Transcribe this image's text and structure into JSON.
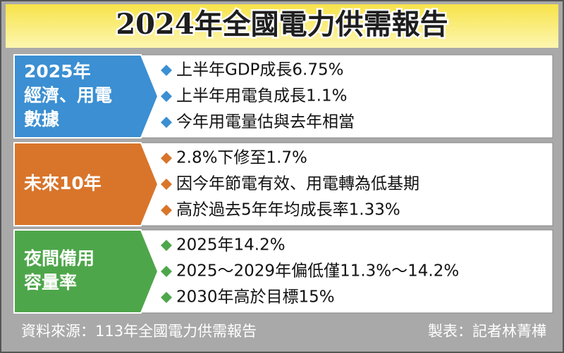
{
  "title": "2024年全國電力供需報告",
  "sections": [
    {
      "label": [
        "2025年",
        "經濟、用電",
        "數據"
      ],
      "color": "#3b8fd2",
      "items": [
        "上半年GDP成長6.75%",
        "上半年用電負成長1.1%",
        "今年用電量估與去年相當"
      ]
    },
    {
      "label": [
        "未來10年"
      ],
      "color": "#d8752b",
      "items": [
        "2.8%下修至1.7%",
        "因今年節電有效、用電轉為低基期",
        "高於過去5年年均成長率1.33%"
      ]
    },
    {
      "label": [
        "夜間備用",
        "容量率"
      ],
      "color": "#4ea64a",
      "items": [
        "2025年14.2%",
        "2025～2029年偏低僅11.3%～14.2%",
        "2030年高於目標15%"
      ]
    }
  ],
  "footer": {
    "source": "資料來源：113年全國電力供需報告",
    "credit": "製表：記者林菁樺"
  }
}
